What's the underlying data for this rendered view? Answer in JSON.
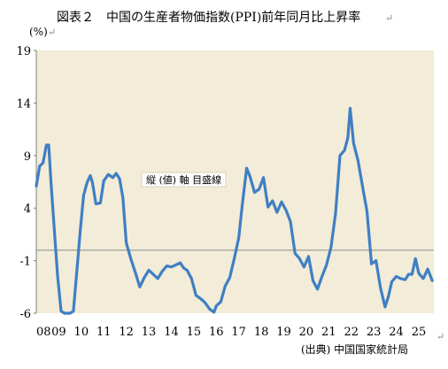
{
  "colors": {
    "plot_bg": "#F2ECD8",
    "line": "#3F7FC4",
    "zero_line": "#8C8C8C",
    "axis": "#7F7F7F",
    "gridline": "#CFC8B4"
  },
  "chart_data": {
    "type": "line",
    "title": "図表２　中国の生産者物価指数(PPI)前年同月比上昇率",
    "unit_label": "(%)",
    "source": "(出典) 中国国家統計局",
    "annotation": "縦 (値) 軸 目盛線",
    "yticks": [
      "19",
      "14",
      "9",
      "4",
      "-1",
      "-6"
    ],
    "ylim": [
      -6,
      19
    ],
    "xlim": [
      2008.0,
      2025.67
    ],
    "xtick_labels": [
      "08",
      "09",
      "10",
      "11",
      "12",
      "13",
      "14",
      "15",
      "16",
      "17",
      "18",
      "19",
      "20",
      "21",
      "22",
      "23",
      "24",
      "25"
    ],
    "reference_line": 0,
    "grid": false,
    "series": [
      {
        "x": [
          2008.0,
          2008.15,
          2008.3,
          2008.45,
          2008.55,
          2008.65,
          2008.8,
          2008.95,
          2009.1,
          2009.25,
          2009.35,
          2009.5,
          2009.65,
          2009.8,
          2009.95,
          2010.1,
          2010.25,
          2010.4,
          2010.5,
          2010.65,
          2010.85,
          2011.0,
          2011.2,
          2011.4,
          2011.55,
          2011.7,
          2011.85,
          2012.0,
          2012.2,
          2012.4,
          2012.6,
          2012.8,
          2013.0,
          2013.2,
          2013.4,
          2013.6,
          2013.8,
          2014.0,
          2014.2,
          2014.4,
          2014.55,
          2014.7,
          2014.9,
          2015.1,
          2015.3,
          2015.5,
          2015.7,
          2015.9,
          2016.0,
          2016.2,
          2016.4,
          2016.6,
          2016.8,
          2017.0,
          2017.15,
          2017.35,
          2017.5,
          2017.7,
          2017.9,
          2018.1,
          2018.3,
          2018.5,
          2018.7,
          2018.9,
          2019.1,
          2019.3,
          2019.5,
          2019.7,
          2019.9,
          2020.1,
          2020.3,
          2020.5,
          2020.7,
          2020.9,
          2021.1,
          2021.3,
          2021.5,
          2021.7,
          2021.85,
          2021.95,
          2022.1,
          2022.3,
          2022.5,
          2022.7,
          2022.9,
          2023.1,
          2023.3,
          2023.5,
          2023.65,
          2023.8,
          2024.0,
          2024.2,
          2024.4,
          2024.55,
          2024.7,
          2024.85,
          2025.0,
          2025.2,
          2025.4,
          2025.6
        ],
        "values": [
          6.1,
          8.0,
          8.3,
          10.0,
          10.0,
          6.6,
          2.0,
          -2.5,
          -5.8,
          -8.0,
          -8.2,
          -7.9,
          -5.8,
          -2.1,
          1.8,
          5.2,
          6.4,
          7.1,
          6.4,
          4.4,
          4.5,
          6.6,
          7.2,
          6.9,
          7.3,
          6.8,
          5.0,
          0.7,
          -0.8,
          -2.1,
          -3.5,
          -2.6,
          -1.9,
          -2.3,
          -2.7,
          -2.0,
          -1.5,
          -1.6,
          -1.4,
          -1.2,
          -1.7,
          -1.9,
          -2.7,
          -4.3,
          -4.6,
          -5.0,
          -5.6,
          -5.9,
          -5.3,
          -4.9,
          -3.4,
          -2.6,
          -0.8,
          1.2,
          4.2,
          7.8,
          7.0,
          5.5,
          5.8,
          6.9,
          4.1,
          4.7,
          3.6,
          4.6,
          3.8,
          2.7,
          -0.3,
          -0.8,
          -1.6,
          -0.6,
          -2.9,
          -3.7,
          -2.5,
          -1.4,
          0.3,
          3.5,
          9.0,
          9.5,
          10.7,
          13.5,
          10.2,
          8.5,
          6.1,
          3.7,
          -1.3,
          -1.0,
          -3.6,
          -5.4,
          -4.4,
          -3.0,
          -2.5,
          -2.7,
          -2.8,
          -2.3,
          -2.3,
          -0.8,
          -2.2,
          -2.7,
          -1.8,
          -2.9
        ]
      }
    ]
  }
}
